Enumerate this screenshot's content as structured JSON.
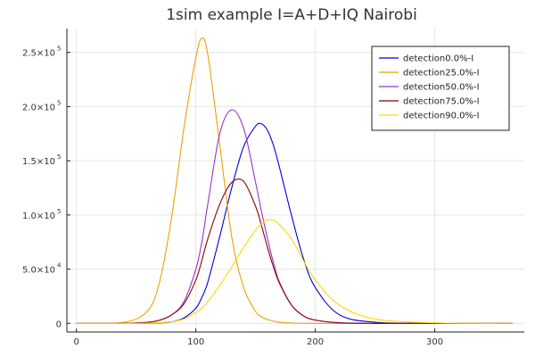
{
  "chart_data": {
    "type": "line",
    "title": "1sim example I=A+D+IQ Nairobi",
    "xlabel": "",
    "ylabel": "",
    "xlim": [
      -8,
      375
    ],
    "ylim": [
      -8000,
      272000
    ],
    "x_ticks": [
      0,
      100,
      200,
      300
    ],
    "y_ticks": [
      {
        "value": 0,
        "mantissa": "0",
        "exponent": ""
      },
      {
        "value": 50000,
        "mantissa": "5.0×10",
        "exponent": "4"
      },
      {
        "value": 100000,
        "mantissa": "1.0×10",
        "exponent": "5"
      },
      {
        "value": 150000,
        "mantissa": "1.5×10",
        "exponent": "5"
      },
      {
        "value": 200000,
        "mantissa": "2.0×10",
        "exponent": "5"
      },
      {
        "value": 250000,
        "mantissa": "2.5×10",
        "exponent": "5"
      }
    ],
    "grid": true,
    "legend_position": "top-right",
    "x": [
      0,
      40,
      60,
      70,
      80,
      90,
      100,
      105,
      110,
      120,
      130,
      140,
      150,
      155,
      160,
      165,
      170,
      180,
      190,
      200,
      220,
      250,
      300,
      365
    ],
    "series": [
      {
        "name": "detection0.0%-I",
        "color": "#0000dd",
        "values": [
          0,
          0,
          100,
          400,
          1500,
          5000,
          14000,
          24000,
          38000,
          80000,
          125000,
          163000,
          182000,
          184000,
          178000,
          164000,
          144000,
          100000,
          60000,
          33000,
          8000,
          1000,
          0,
          0
        ]
      },
      {
        "name": "detection25.0%-I",
        "color": "#f0a000",
        "values": [
          0,
          1000,
          12000,
          40000,
          100000,
          180000,
          245000,
          263000,
          248000,
          165000,
          80000,
          33000,
          11000,
          6000,
          3500,
          2000,
          1000,
          300,
          100,
          0,
          0,
          0,
          0,
          0
        ]
      },
      {
        "name": "detection50.0%-I",
        "color": "#9932cc",
        "values": [
          0,
          100,
          1000,
          3000,
          8000,
          20000,
          50000,
          75000,
          110000,
          175000,
          197000,
          180000,
          130000,
          103000,
          78000,
          56000,
          38000,
          17000,
          7000,
          3000,
          500,
          0,
          0,
          0
        ]
      },
      {
        "name": "detection75.0%-I",
        "color": "#8b0000",
        "values": [
          0,
          100,
          1000,
          3000,
          8000,
          18000,
          40000,
          58000,
          78000,
          110000,
          130000,
          131000,
          108000,
          90000,
          70000,
          52000,
          37000,
          17000,
          7000,
          3000,
          500,
          0,
          0,
          0
        ]
      },
      {
        "name": "detection90.0%-I",
        "color": "#ffd700",
        "values": [
          0,
          0,
          200,
          600,
          1500,
          4000,
          10000,
          14000,
          20000,
          35000,
          52000,
          70000,
          86000,
          92000,
          95500,
          95000,
          91000,
          78000,
          58000,
          40000,
          17000,
          4000,
          500,
          0
        ]
      }
    ]
  }
}
